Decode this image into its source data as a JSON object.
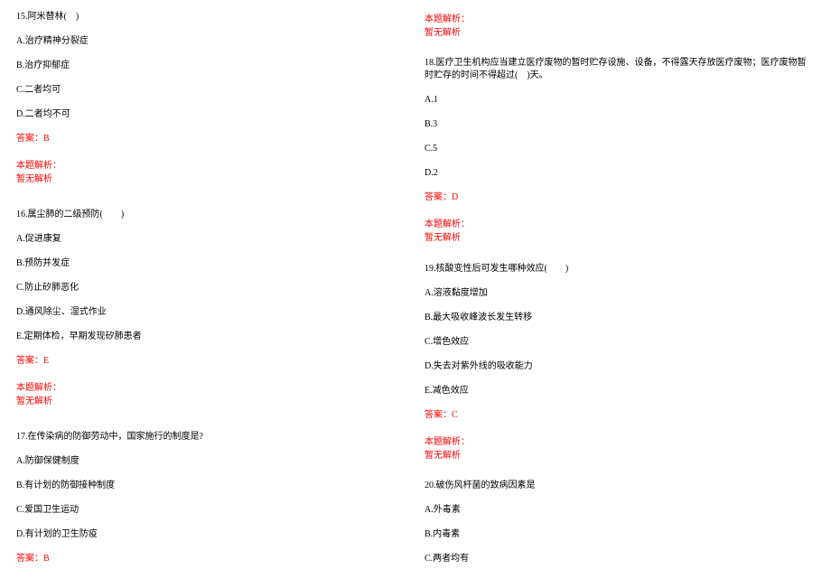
{
  "colors": {
    "text": "#000000",
    "highlight": "#ff0000",
    "background": "#ffffff"
  },
  "typography": {
    "font_family": "SimSun",
    "font_size": 10,
    "line_spacing": 13
  },
  "left_column": {
    "q15": {
      "title": "15.阿米替林(　)",
      "options": [
        "A.治疗精神分裂症",
        "B.治疗抑郁症",
        "C.二者均可",
        "D.二者均不可"
      ],
      "answer": "答案：B",
      "analysis_label": "本题解析：",
      "analysis_text": "暂无解析"
    },
    "q16": {
      "title": "16.属尘肺的二级预防(　　)",
      "options": [
        "A.促进康复",
        "B.预防并发症",
        "C.防止矽肺恶化",
        "D.通风除尘、湿式作业",
        "E.定期体检，早期发现矽肺患者"
      ],
      "answer": "答案：E",
      "analysis_label": "本题解析：",
      "analysis_text": "暂无解析"
    },
    "q17": {
      "title": "17.在传染病的防御劳动中，国家施行的制度是?",
      "options": [
        "A.防御保健制度",
        "B.有计划的防御接种制度",
        "C.爱国卫生运动",
        "D.有计划的卫生防疫"
      ],
      "answer": "答案：B"
    }
  },
  "right_column": {
    "q17_cont": {
      "analysis_label": "本题解析：",
      "analysis_text": "暂无解析"
    },
    "q18": {
      "title": "18.医疗卫生机构应当建立医疗废物的暂时贮存设施、设备，不得露天存放医疗废物；医疗废物暂时贮存的时间不得超过(　)天。",
      "options": [
        "A.1",
        "B.3",
        "C.5",
        "D.2"
      ],
      "answer": "答案：D",
      "analysis_label": "本题解析：",
      "analysis_text": "暂无解析"
    },
    "q19": {
      "title": "19.核酸变性后可发生哪种效应(　　)",
      "options": [
        "A.溶液黏度增加",
        "B.最大吸收峰波长发生转移",
        "C.增色效应",
        "D.失去对紫外线的吸收能力",
        "E.减色效应"
      ],
      "answer": "答案：C",
      "analysis_label": "本题解析：",
      "analysis_text": "暂无解析"
    },
    "q20": {
      "title": "20.破伤风杆菌的致病因素是",
      "options": [
        "A.外毒素",
        "B.内毒素",
        "C.两者均有"
      ]
    }
  }
}
